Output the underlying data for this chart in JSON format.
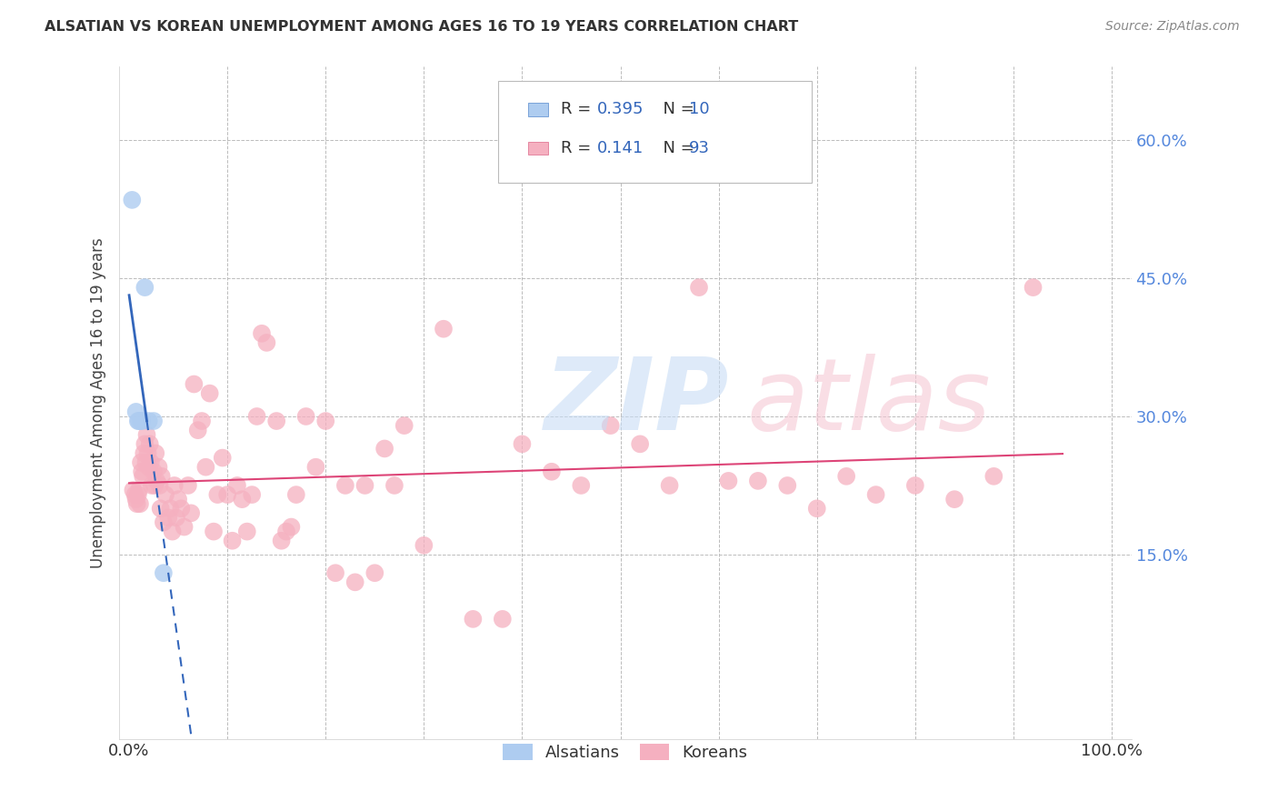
{
  "title": "ALSATIAN VS KOREAN UNEMPLOYMENT AMONG AGES 16 TO 19 YEARS CORRELATION CHART",
  "source": "Source: ZipAtlas.com",
  "ylabel": "Unemployment Among Ages 16 to 19 years",
  "xlim": [
    -0.01,
    1.02
  ],
  "ylim": [
    -0.05,
    0.68
  ],
  "y_ticks": [
    0.15,
    0.3,
    0.45,
    0.6
  ],
  "y_tick_labels": [
    "15.0%",
    "30.0%",
    "45.0%",
    "60.0%"
  ],
  "alsatian_R": 0.395,
  "alsatian_N": 10,
  "korean_R": 0.141,
  "korean_N": 93,
  "alsatian_color": "#aeccf0",
  "alsatian_edge": "#5588cc",
  "korean_color": "#f5b0c0",
  "korean_edge": "#dd6688",
  "alsatian_trend_color": "#3366bb",
  "korean_trend_color": "#dd4477",
  "alsatian_x": [
    0.003,
    0.007,
    0.009,
    0.01,
    0.012,
    0.013,
    0.016,
    0.02,
    0.025,
    0.035
  ],
  "alsatian_y": [
    0.535,
    0.305,
    0.295,
    0.295,
    0.295,
    0.295,
    0.44,
    0.295,
    0.295,
    0.13
  ],
  "korean_x": [
    0.004,
    0.006,
    0.007,
    0.008,
    0.009,
    0.01,
    0.011,
    0.012,
    0.013,
    0.014,
    0.015,
    0.016,
    0.017,
    0.018,
    0.019,
    0.02,
    0.021,
    0.022,
    0.023,
    0.025,
    0.026,
    0.027,
    0.028,
    0.03,
    0.031,
    0.032,
    0.033,
    0.035,
    0.037,
    0.04,
    0.042,
    0.044,
    0.046,
    0.048,
    0.05,
    0.053,
    0.056,
    0.06,
    0.063,
    0.066,
    0.07,
    0.074,
    0.078,
    0.082,
    0.086,
    0.09,
    0.095,
    0.1,
    0.105,
    0.11,
    0.115,
    0.12,
    0.125,
    0.13,
    0.135,
    0.14,
    0.15,
    0.155,
    0.16,
    0.165,
    0.17,
    0.18,
    0.19,
    0.2,
    0.21,
    0.22,
    0.23,
    0.24,
    0.25,
    0.26,
    0.27,
    0.28,
    0.3,
    0.32,
    0.35,
    0.38,
    0.4,
    0.43,
    0.46,
    0.49,
    0.52,
    0.55,
    0.58,
    0.61,
    0.64,
    0.67,
    0.7,
    0.73,
    0.76,
    0.8,
    0.84,
    0.88,
    0.92
  ],
  "korean_y": [
    0.22,
    0.215,
    0.21,
    0.205,
    0.215,
    0.22,
    0.205,
    0.25,
    0.24,
    0.235,
    0.26,
    0.27,
    0.25,
    0.28,
    0.26,
    0.245,
    0.27,
    0.25,
    0.225,
    0.24,
    0.225,
    0.26,
    0.23,
    0.245,
    0.225,
    0.2,
    0.235,
    0.185,
    0.215,
    0.19,
    0.2,
    0.175,
    0.225,
    0.19,
    0.21,
    0.2,
    0.18,
    0.225,
    0.195,
    0.335,
    0.285,
    0.295,
    0.245,
    0.325,
    0.175,
    0.215,
    0.255,
    0.215,
    0.165,
    0.225,
    0.21,
    0.175,
    0.215,
    0.3,
    0.39,
    0.38,
    0.295,
    0.165,
    0.175,
    0.18,
    0.215,
    0.3,
    0.245,
    0.295,
    0.13,
    0.225,
    0.12,
    0.225,
    0.13,
    0.265,
    0.225,
    0.29,
    0.16,
    0.395,
    0.08,
    0.08,
    0.27,
    0.24,
    0.225,
    0.29,
    0.27,
    0.225,
    0.44,
    0.23,
    0.23,
    0.225,
    0.2,
    0.235,
    0.215,
    0.225,
    0.21,
    0.235,
    0.44
  ]
}
